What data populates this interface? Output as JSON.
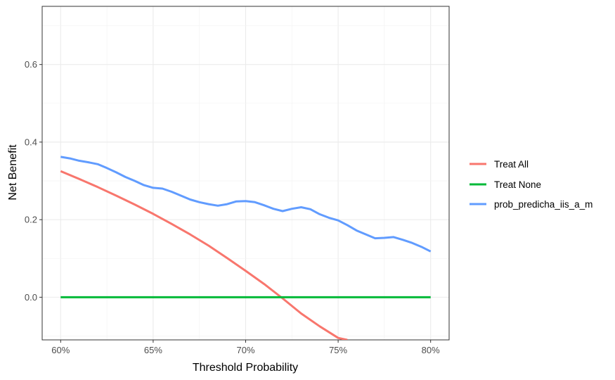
{
  "chart_data": {
    "type": "line",
    "title": "",
    "xlabel": "Threshold Probability",
    "ylabel": "Net Benefit",
    "xlim": [
      0.59,
      0.81
    ],
    "ylim": [
      -0.11,
      0.75
    ],
    "x_ticks": [
      0.6,
      0.65,
      0.7,
      0.75,
      0.8
    ],
    "x_tick_labels": [
      "60%",
      "65%",
      "70%",
      "75%",
      "80%"
    ],
    "y_ticks": [
      0.0,
      0.2,
      0.4,
      0.6
    ],
    "y_tick_labels": [
      "0.0",
      "0.2",
      "0.4",
      "0.6"
    ],
    "grid": true,
    "legend_position": "right",
    "series": [
      {
        "name": "Treat All",
        "color": "#F8766D",
        "x": [
          0.6,
          0.61,
          0.62,
          0.63,
          0.64,
          0.65,
          0.66,
          0.67,
          0.68,
          0.69,
          0.7,
          0.71,
          0.72,
          0.73,
          0.74,
          0.75,
          0.755
        ],
        "y": [
          0.325,
          0.305,
          0.284,
          0.262,
          0.239,
          0.215,
          0.189,
          0.162,
          0.133,
          0.101,
          0.068,
          0.034,
          -0.003,
          -0.042,
          -0.075,
          -0.105,
          -0.11
        ]
      },
      {
        "name": "Treat None",
        "color": "#00BA38",
        "x": [
          0.6,
          0.8
        ],
        "y": [
          0.0,
          0.0
        ]
      },
      {
        "name": "prob_predicha_iis_a_m",
        "color": "#619CFF",
        "x": [
          0.6,
          0.605,
          0.61,
          0.615,
          0.62,
          0.625,
          0.63,
          0.635,
          0.64,
          0.645,
          0.65,
          0.655,
          0.66,
          0.665,
          0.67,
          0.675,
          0.68,
          0.685,
          0.69,
          0.695,
          0.7,
          0.705,
          0.71,
          0.715,
          0.72,
          0.725,
          0.73,
          0.735,
          0.74,
          0.745,
          0.75,
          0.755,
          0.76,
          0.765,
          0.77,
          0.775,
          0.78,
          0.785,
          0.79,
          0.795,
          0.8
        ],
        "y": [
          0.362,
          0.358,
          0.352,
          0.348,
          0.343,
          0.333,
          0.322,
          0.31,
          0.3,
          0.289,
          0.282,
          0.28,
          0.272,
          0.262,
          0.252,
          0.245,
          0.24,
          0.236,
          0.24,
          0.247,
          0.248,
          0.245,
          0.237,
          0.228,
          0.222,
          0.228,
          0.232,
          0.227,
          0.214,
          0.205,
          0.198,
          0.186,
          0.172,
          0.162,
          0.152,
          0.153,
          0.155,
          0.148,
          0.14,
          0.13,
          0.118
        ]
      }
    ]
  }
}
